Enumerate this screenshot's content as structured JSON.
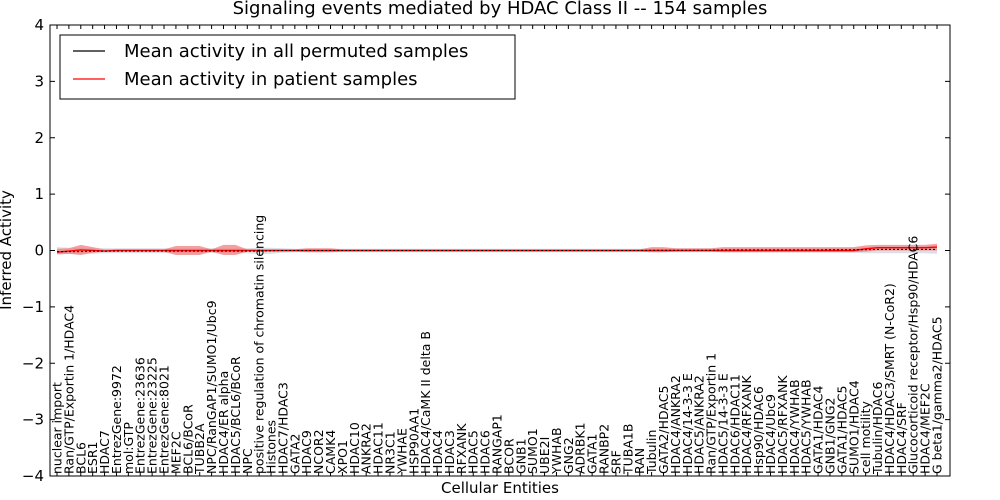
{
  "chart_data": {
    "type": "line",
    "title": "Signaling events mediated by HDAC Class II -- 154 samples",
    "xlabel": "Cellular Entities",
    "ylabel": "Inferred Activity",
    "ylim": [
      -4,
      4
    ],
    "yticks": [
      "4",
      "3",
      "2",
      "1",
      "0",
      "−1",
      "−2",
      "−3",
      "−4"
    ],
    "ytick_values": [
      4,
      3,
      2,
      1,
      0,
      -1,
      -2,
      -3,
      -4
    ],
    "grid": false,
    "legend_position": "top-left",
    "legend": [
      {
        "label": "Mean activity in all permuted samples",
        "color": "#000000"
      },
      {
        "label": "Mean activity in patient samples",
        "color": "#ff0000"
      }
    ],
    "categories": [
      "nuclear import",
      "Ran/GTP/Exportin 1/HDAC4",
      "BCL6",
      "ESR1",
      "HDAC7",
      "EntrezGene:9972",
      "mol:GTP",
      "EntrezGene:23636",
      "EntrezGene:23225",
      "EntrezGene:8021",
      "MEF2C",
      "BCL6/BCoR",
      "TUBB2A",
      "NPC/RanGAP1/SUMO1/Ubc9",
      "HDAC4/ER alpha",
      "HDAC5/BCL6/BCoR",
      "NPC",
      "positive regulation of chromatin silencing",
      "Histones",
      "HDAC7/HDAC3",
      "GATA2",
      "HDAC9",
      "NCOR2",
      "CAMK4",
      "XPO1",
      "HDAC10",
      "ANKRA2",
      "HDAC11",
      "NR3C1",
      "YWHAE",
      "HSP90AA1",
      "HDAC4/CaMK II delta B",
      "HDAC4",
      "HDAC3",
      "RFXANK",
      "HDAC5",
      "HDAC6",
      "RANGAP1",
      "BCOR",
      "GNB1",
      "SUMO1",
      "UBE2I",
      "YWHAB",
      "GNG2",
      "ADRBK1",
      "GATA1",
      "RANBP2",
      "SRF",
      "TUBA1B",
      "RAN",
      "Tubulin",
      "GATA2/HDAC5",
      "HDAC4/ANKRA2",
      "HDAC4/14-3-3 E",
      "HDAC5/ANKRA2",
      "Ran/GTP/Exportin 1",
      "HDAC5/14-3-3 E",
      "HDAC6/HDAC11",
      "HDAC4/RFXANK",
      "Hsp90/HDAC6",
      "HDAC4/Ubc9",
      "HDAC5/RFXANK",
      "HDAC4/YWHAB",
      "HDAC5/YWHAB",
      "GATA1/HDAC4",
      "GNB1/GNG2",
      "GATA1/HDAC5",
      "SUMO1/HDAC4",
      "cell motility",
      "Tubulin/HDAC6",
      "HDAC4/HDAC3/SMRT (N-CoR2)",
      "HDAC4/SRF",
      "Glucocorticoid receptor/Hsp90/HDAC6",
      "HDAC4/MEF2C",
      "G beta1/gamma2/HDAC5"
    ],
    "series": [
      {
        "name": "Mean activity in all permuted samples",
        "color": "#000000",
        "values": [
          -0.02,
          -0.02,
          -0.02,
          -0.01,
          -0.01,
          -0.01,
          -0.01,
          -0.01,
          -0.01,
          -0.01,
          -0.01,
          -0.01,
          -0.01,
          -0.01,
          -0.01,
          -0.01,
          -0.01,
          -0.01,
          -0.005,
          0,
          0,
          0,
          0,
          0,
          0,
          0,
          0,
          0,
          0,
          0,
          0,
          0,
          0,
          0,
          0,
          0,
          0,
          0,
          0,
          0,
          0,
          0,
          0,
          0,
          0,
          0,
          0,
          0,
          0,
          0,
          0.005,
          0.005,
          0.005,
          0.005,
          0.005,
          0.005,
          0.01,
          0.01,
          0.01,
          0.01,
          0.01,
          0.01,
          0.01,
          0.01,
          0.01,
          0.015,
          0.015,
          0.015,
          0.015,
          0.02,
          0.02,
          0.02,
          0.02,
          0.02,
          0.02
        ],
        "band_low": [
          -0.07,
          -0.06,
          -0.06,
          -0.06,
          -0.05,
          -0.05,
          -0.05,
          -0.05,
          -0.05,
          -0.05,
          -0.05,
          -0.05,
          -0.05,
          -0.05,
          -0.05,
          -0.05,
          -0.05,
          -0.06,
          -0.06,
          -0.04,
          -0.03,
          -0.03,
          -0.03,
          -0.03,
          -0.03,
          -0.03,
          -0.03,
          -0.03,
          -0.03,
          -0.03,
          -0.03,
          -0.03,
          -0.03,
          -0.03,
          -0.03,
          -0.03,
          -0.03,
          -0.03,
          -0.03,
          -0.03,
          -0.03,
          -0.03,
          -0.03,
          -0.03,
          -0.03,
          -0.03,
          -0.03,
          -0.03,
          -0.03,
          -0.03,
          -0.03,
          -0.03,
          -0.03,
          -0.03,
          -0.03,
          -0.03,
          -0.03,
          -0.03,
          -0.03,
          -0.03,
          -0.03,
          -0.03,
          -0.03,
          -0.03,
          -0.03,
          -0.03,
          -0.03,
          -0.04,
          -0.05,
          -0.05,
          -0.05,
          -0.05,
          -0.05,
          -0.05,
          -0.06
        ],
        "band_high": [
          0.06,
          0.05,
          0.05,
          0.04,
          0.04,
          0.04,
          0.04,
          0.04,
          0.04,
          0.04,
          0.04,
          0.04,
          0.04,
          0.04,
          0.04,
          0.04,
          0.04,
          0.05,
          0.05,
          0.04,
          0.03,
          0.03,
          0.03,
          0.03,
          0.03,
          0.03,
          0.03,
          0.03,
          0.03,
          0.03,
          0.03,
          0.03,
          0.03,
          0.03,
          0.03,
          0.03,
          0.03,
          0.03,
          0.03,
          0.03,
          0.03,
          0.03,
          0.03,
          0.03,
          0.03,
          0.03,
          0.03,
          0.03,
          0.03,
          0.03,
          0.035,
          0.035,
          0.035,
          0.035,
          0.035,
          0.035,
          0.04,
          0.04,
          0.04,
          0.04,
          0.04,
          0.04,
          0.04,
          0.04,
          0.04,
          0.045,
          0.045,
          0.05,
          0.06,
          0.07,
          0.07,
          0.07,
          0.07,
          0.07,
          0.08
        ]
      },
      {
        "name": "Mean activity in patient samples",
        "color": "#ff0000",
        "values": [
          -0.03,
          -0.01,
          0.01,
          0.0,
          -0.01,
          0.0,
          0.0,
          0.0,
          0.0,
          0.0,
          0.0,
          0.0,
          0.0,
          0.0,
          0.0,
          0.0,
          0.0,
          0.0,
          0.0,
          0.0,
          0.0,
          0.0,
          0.0,
          0.0,
          0.0,
          0.0,
          0.0,
          0.0,
          0.0,
          0.0,
          0.0,
          0.0,
          0.0,
          0.0,
          0.0,
          0.0,
          0.0,
          0.0,
          0.0,
          0.0,
          0.0,
          0.0,
          0.0,
          0.0,
          0.0,
          0.0,
          0.0,
          0.0,
          0.0,
          0.0,
          0.0,
          0.0,
          0.0,
          0.0,
          0.0,
          0.0,
          0.0,
          0.0,
          0.0,
          0.0,
          0.0,
          0.0,
          0.0,
          0.0,
          0.0,
          0.0,
          0.0,
          0.0,
          0.03,
          0.05,
          0.05,
          0.05,
          0.05,
          0.05,
          0.06
        ],
        "band_low": [
          -0.07,
          -0.06,
          -0.08,
          -0.04,
          -0.02,
          -0.02,
          -0.02,
          -0.02,
          -0.02,
          -0.02,
          -0.08,
          -0.08,
          -0.08,
          -0.02,
          -0.08,
          -0.08,
          -0.02,
          -0.02,
          -0.02,
          -0.02,
          -0.02,
          -0.03,
          -0.03,
          -0.03,
          -0.02,
          -0.02,
          -0.02,
          -0.02,
          -0.02,
          -0.02,
          -0.02,
          -0.02,
          -0.02,
          -0.02,
          -0.02,
          -0.02,
          -0.02,
          -0.02,
          -0.02,
          -0.02,
          -0.02,
          -0.02,
          -0.02,
          -0.02,
          -0.02,
          -0.02,
          -0.02,
          -0.02,
          -0.02,
          -0.02,
          -0.03,
          -0.03,
          -0.02,
          -0.02,
          -0.02,
          -0.02,
          -0.03,
          -0.03,
          -0.03,
          -0.03,
          -0.03,
          -0.03,
          -0.03,
          -0.03,
          -0.03,
          -0.03,
          -0.03,
          -0.03,
          -0.02,
          0.0,
          0.0,
          0.0,
          0.0,
          0.0,
          0.0
        ],
        "band_high": [
          0.03,
          0.04,
          0.1,
          0.06,
          0.02,
          0.02,
          0.02,
          0.02,
          0.02,
          0.02,
          0.08,
          0.08,
          0.08,
          0.02,
          0.1,
          0.1,
          0.02,
          0.02,
          0.02,
          0.02,
          0.02,
          0.04,
          0.04,
          0.04,
          0.02,
          0.02,
          0.02,
          0.02,
          0.02,
          0.02,
          0.02,
          0.02,
          0.02,
          0.02,
          0.02,
          0.02,
          0.02,
          0.02,
          0.02,
          0.02,
          0.02,
          0.02,
          0.02,
          0.02,
          0.02,
          0.02,
          0.02,
          0.02,
          0.02,
          0.02,
          0.06,
          0.06,
          0.04,
          0.04,
          0.04,
          0.04,
          0.06,
          0.06,
          0.06,
          0.06,
          0.06,
          0.06,
          0.06,
          0.06,
          0.06,
          0.06,
          0.06,
          0.06,
          0.09,
          0.1,
          0.1,
          0.1,
          0.1,
          0.1,
          0.12
        ]
      }
    ]
  }
}
